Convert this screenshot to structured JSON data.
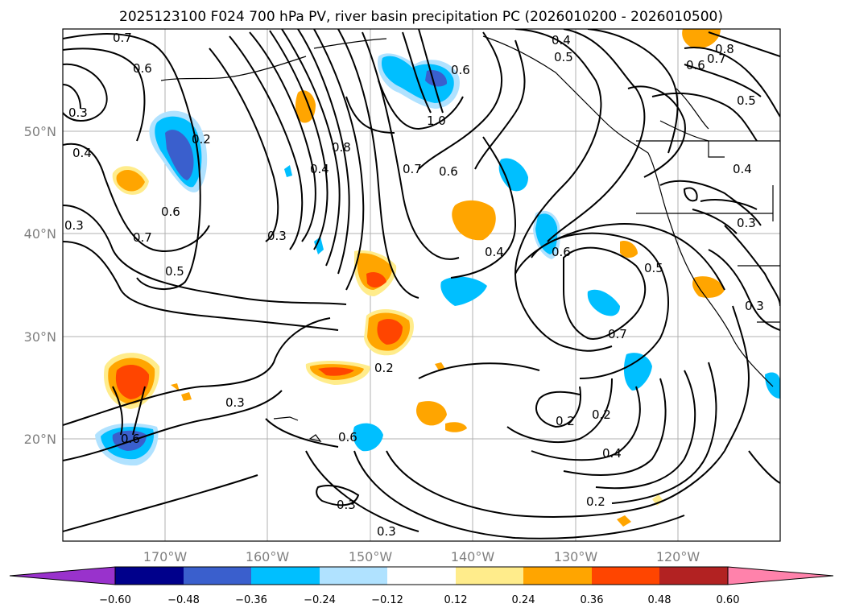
{
  "title": "2025123100 F024 700 hPa PV, river basin precipitation PC (2026010200 - 2026010500)",
  "map": {
    "lon_ticks": [
      "170°W",
      "160°W",
      "150°W",
      "140°W",
      "130°W",
      "120°W"
    ],
    "lat_ticks": [
      "50°N",
      "40°N",
      "30°N",
      "20°N"
    ],
    "grid": true
  },
  "colorbar": {
    "ticks": [
      "−0.60",
      "−0.48",
      "−0.36",
      "−0.24",
      "−0.12",
      "0.12",
      "0.24",
      "0.36",
      "0.48",
      "0.60"
    ],
    "colors": [
      "#9932cc",
      "#00008b",
      "#3a5fcd",
      "#00bfff",
      "#b0e2ff",
      "#ffffff",
      "#ffec8b",
      "#ffa500",
      "#ff4500",
      "#b22222",
      "#ff82ab"
    ]
  },
  "contour_labels": [
    "0.7",
    "0.6",
    "0.3",
    "0.4",
    "0.2",
    "0.6",
    "0.7",
    "0.5",
    "0.4",
    "0.8",
    "0.3",
    "0.3",
    "0.7",
    "1.0",
    "0.6",
    "0.4",
    "0.5",
    "0.6",
    "0.8",
    "0.7",
    "0.6",
    "0.5",
    "0.4",
    "0.6",
    "0.5",
    "0.7",
    "0.3",
    "0.3",
    "0.4",
    "0.2",
    "0.2",
    "0.3",
    "0.6",
    "0.2",
    "0.4",
    "0.3",
    "0.3",
    "0.2",
    "0.6"
  ]
}
